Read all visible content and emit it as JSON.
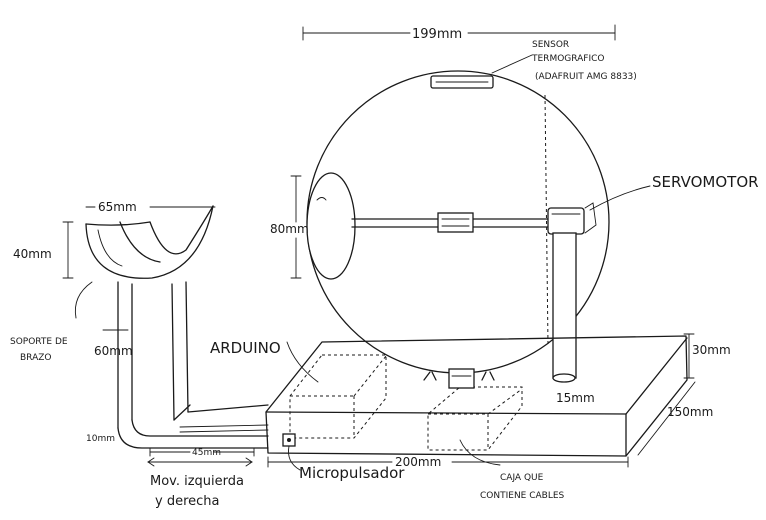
{
  "labels": {
    "sphere_width": "199mm",
    "sensor_line1": "SENSOR",
    "sensor_line2": "TERMOGRAFICO",
    "sensor_line3": "(ADAFRUIT AMG 8833)",
    "servomotor": "SERVOMOTOR",
    "disc_height": "80mm",
    "arm_width": "65mm",
    "arm_height": "40mm",
    "arm_support_line1": "SOPORTE DE",
    "arm_support_line2": "BRAZO",
    "column_height": "60mm",
    "arduino": "ARDUINO",
    "base_height": "30mm",
    "servo_post": "15mm",
    "base_depth": "150mm",
    "rod_length": "45mm",
    "foot_height": "10mm",
    "movement_line1": "Mov. izquierda",
    "movement_line2": "y derecha",
    "micropulsador": "Micropulsador",
    "base_length": "200mm",
    "cable_box_line1": "CAJA QUE",
    "cable_box_line2": "CONTIENE CABLES"
  }
}
